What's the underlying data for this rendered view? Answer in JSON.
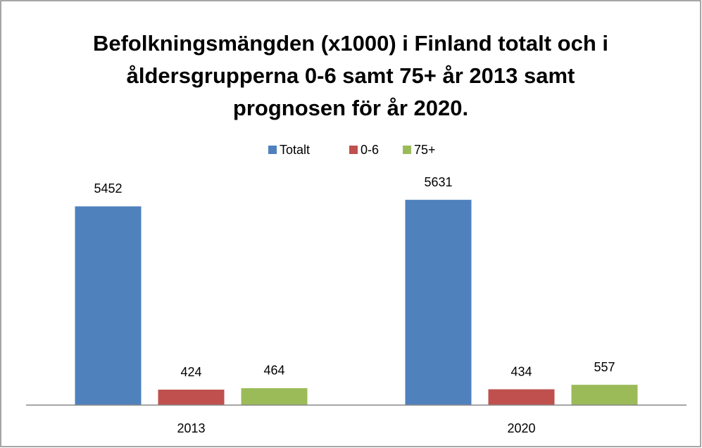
{
  "chart_data": {
    "type": "bar",
    "title": "Befolkningsmängden (x1000) i Finland totalt och i åldersgrupperna 0-6 samt 75+ år 2013 samt prognosen för år 2020.",
    "categories": [
      "2013",
      "2020"
    ],
    "series": [
      {
        "name": "Totalt",
        "color": "#4f81bd",
        "values": [
          5452,
          5631
        ]
      },
      {
        "name": "0-6",
        "color": "#c0504d",
        "values": [
          424,
          434
        ]
      },
      {
        "name": "75+",
        "color": "#9bbb59",
        "values": [
          464,
          557
        ]
      }
    ],
    "ylim": [
      0,
      6000
    ],
    "legend": "top"
  }
}
